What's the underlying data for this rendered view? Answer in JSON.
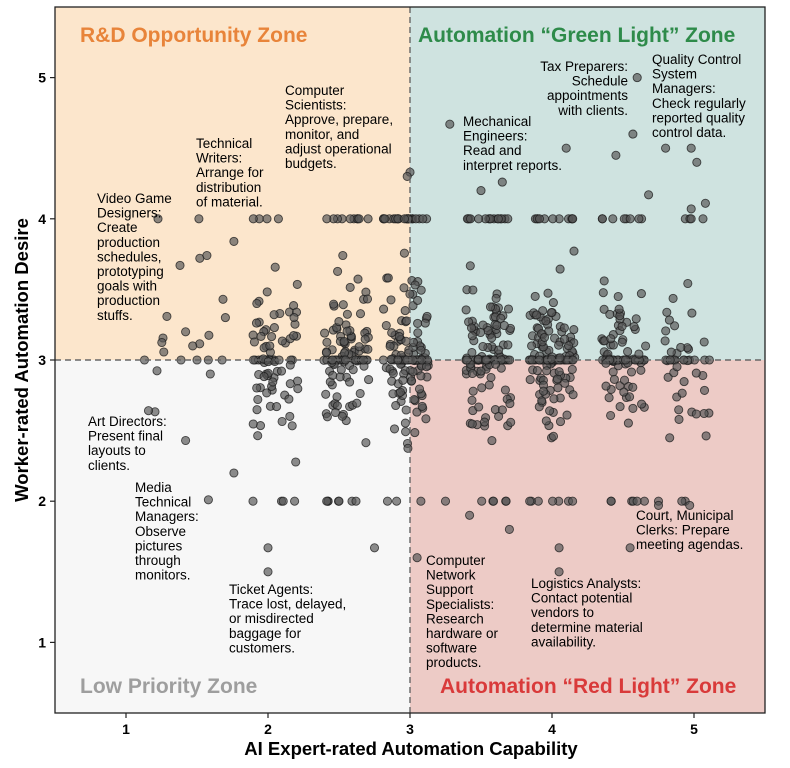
{
  "chart_data": {
    "type": "scatter",
    "xlabel": "AI Expert-rated Automation Capability",
    "ylabel": "Worker-rated Automation Desire",
    "xlim": [
      0.5,
      5.5
    ],
    "ylim": [
      0.5,
      5.5
    ],
    "xticks": [
      "1",
      "2",
      "3",
      "4",
      "5"
    ],
    "yticks": [
      "1",
      "2",
      "3",
      "4",
      "5"
    ],
    "thresholds": {
      "x": 3,
      "y": 3
    },
    "zones": [
      {
        "id": "rd",
        "label": "R&D Opportunity Zone",
        "color": "#E8843A",
        "bg": "#FCE6CC"
      },
      {
        "id": "green",
        "label": "Automation “Green Light” Zone",
        "color": "#2E8B4A",
        "bg": "#CFE3E0"
      },
      {
        "id": "low",
        "label": "Low Priority Zone",
        "color": "#9E9E9E",
        "bg": "#F7F7F7"
      },
      {
        "id": "red",
        "label": "Automation “Red Light” Zone",
        "color": "#D93A3A",
        "bg": "#EDCBC6"
      }
    ],
    "annotations": [
      {
        "lines": [
          "Video Game",
          "Designers:",
          "Create",
          "production",
          "schedules,",
          "prototyping",
          "goals with",
          "production",
          "stuffs."
        ]
      },
      {
        "lines": [
          "Technical",
          "Writers:",
          "Arrange for",
          "distribution",
          "of material."
        ]
      },
      {
        "lines": [
          "Computer",
          "Scientists:",
          "Approve, prepare,",
          "monitor, and",
          "adjust operational",
          "budgets."
        ]
      },
      {
        "lines": [
          "Mechanical",
          "Engineers:",
          "Read and",
          "interpret reports."
        ]
      },
      {
        "lines": [
          "Tax Preparers:",
          "Schedule",
          "appointments",
          "with clients."
        ]
      },
      {
        "lines": [
          "Quality Control",
          "System",
          "Managers:",
          "Check regularly",
          "reported quality",
          "control data."
        ]
      },
      {
        "lines": [
          "Art Directors:",
          "Present final",
          "layouts to",
          "clients."
        ]
      },
      {
        "lines": [
          "Media",
          "Technical",
          "Managers:",
          "Observe",
          "pictures",
          "through",
          "monitors."
        ]
      },
      {
        "lines": [
          "Ticket Agents:",
          "Trace lost, delayed,",
          "or misdirected",
          "baggage for",
          "customers."
        ]
      },
      {
        "lines": [
          "Computer",
          "Network",
          "Support",
          "Specialists:",
          "Research",
          "hardware or",
          "software",
          "products."
        ]
      },
      {
        "lines": [
          "Logistics Analysts:",
          "Contact potential",
          "vendors to",
          "determine material",
          "availability."
        ]
      },
      {
        "lines": [
          "Court, Municipal",
          "Clerks: Prepare",
          "meeting agendas."
        ]
      }
    ],
    "point_color": "#555555",
    "clusters": [
      {
        "x": 1.25,
        "yr": [
          2.0,
          3.8
        ],
        "n": 10
      },
      {
        "x": 1.55,
        "yr": [
          2.0,
          3.8
        ],
        "n": 7
      },
      {
        "x": 2.05,
        "yr": [
          1.5,
          4.0
        ],
        "n": 85
      },
      {
        "x": 2.55,
        "yr": [
          1.7,
          4.2
        ],
        "n": 120
      },
      {
        "x": 2.97,
        "yr": [
          1.6,
          4.3
        ],
        "n": 150
      },
      {
        "x": 3.55,
        "yr": [
          1.7,
          4.7
        ],
        "n": 140
      },
      {
        "x": 4.0,
        "yr": [
          1.5,
          4.5
        ],
        "n": 150
      },
      {
        "x": 4.5,
        "yr": [
          1.7,
          5.0
        ],
        "n": 100
      },
      {
        "x": 4.95,
        "yr": [
          2.0,
          4.5
        ],
        "n": 50
      }
    ],
    "points": [
      [
        1.38,
        3.67
      ],
      [
        1.42,
        3.2
      ],
      [
        1.47,
        3.1
      ],
      [
        1.5,
        3.0
      ],
      [
        1.52,
        3.72
      ],
      [
        1.57,
        3.74
      ],
      [
        1.7,
        3.3
      ],
      [
        1.76,
        3.84
      ],
      [
        1.42,
        2.43
      ],
      [
        1.58,
        2.01
      ],
      [
        1.76,
        2.2
      ],
      [
        2.0,
        1.67
      ],
      [
        2.0,
        1.5
      ],
      [
        3.0,
        4.33
      ],
      [
        2.98,
        4.3
      ],
      [
        3.28,
        4.67
      ],
      [
        3.5,
        4.2
      ],
      [
        3.65,
        4.26
      ],
      [
        4.1,
        4.5
      ],
      [
        4.45,
        4.45
      ],
      [
        4.57,
        4.6
      ],
      [
        4.6,
        5.0
      ],
      [
        4.8,
        4.5
      ],
      [
        4.98,
        4.5
      ],
      [
        5.02,
        4.4
      ],
      [
        4.68,
        4.17
      ],
      [
        5.08,
        4.11
      ],
      [
        4.98,
        4.07
      ],
      [
        3.05,
        1.6
      ],
      [
        3.7,
        1.8
      ],
      [
        4.05,
        1.67
      ],
      [
        4.05,
        1.5
      ],
      [
        4.55,
        1.67
      ],
      [
        4.75,
        2.0
      ],
      [
        4.97,
        1.97
      ],
      [
        4.75,
        1.97
      ],
      [
        3.25,
        2.0
      ],
      [
        3.42,
        1.9
      ],
      [
        2.5,
        2.0
      ],
      [
        2.62,
        2.0
      ],
      [
        2.75,
        1.67
      ]
    ]
  }
}
